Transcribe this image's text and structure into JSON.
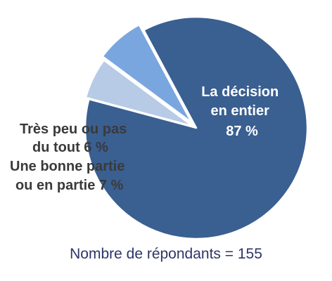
{
  "chart_data": {
    "type": "pie",
    "slices": [
      {
        "name": "La décision en entier",
        "value": 87,
        "label_lines": [
          "La décision",
          "en entier",
          "87 %"
        ],
        "color": "#3a5f91"
      },
      {
        "name": "Une bonne partie ou en partie",
        "value": 7,
        "label_lines": [
          "Une bonne partie",
          "ou en partie   7 %"
        ],
        "color": "#7aa6df"
      },
      {
        "name": "Très peu ou pas du tout",
        "value": 6,
        "label_lines": [
          "Très peu ou pas",
          "du tout   6 %"
        ],
        "color": "#b7cbe6"
      }
    ]
  },
  "footnote": "Nombre de répondants = 155"
}
